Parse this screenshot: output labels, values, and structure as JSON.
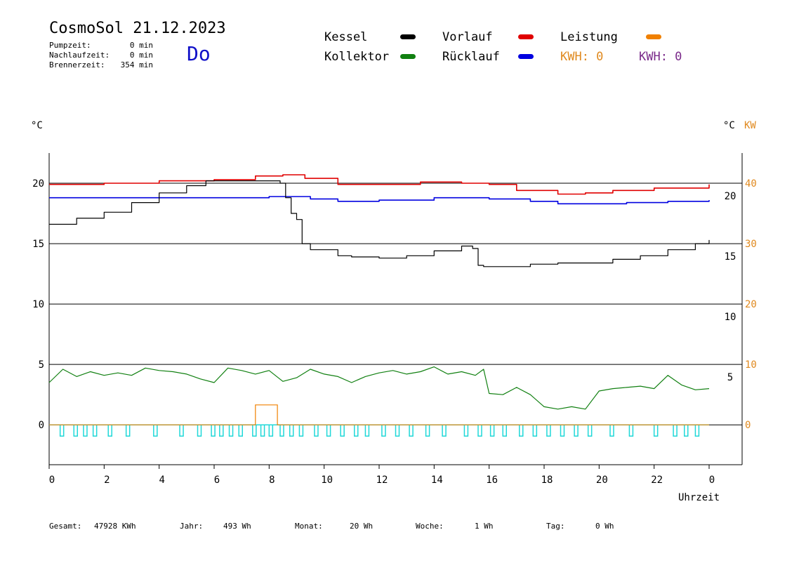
{
  "header": {
    "title": "CosmoSol 21.12.2023",
    "weekday": "Do",
    "stats": [
      {
        "label": "Pumpzeit:",
        "value": "0 min"
      },
      {
        "label": "Nachlaufzeit:",
        "value": "0 min"
      },
      {
        "label": "Brennerzeit:",
        "value": "354 min"
      }
    ]
  },
  "legend": {
    "kessel": {
      "label": "Kessel",
      "color": "#000000"
    },
    "kollektor": {
      "label": "Kollektor",
      "color": "#118011"
    },
    "vorlauf": {
      "label": "Vorlauf",
      "color": "#e00000"
    },
    "ruecklauf": {
      "label": "Rücklauf",
      "color": "#0000e0"
    },
    "leistung": {
      "label": "Leistung",
      "color": "#f08000"
    },
    "kwh_orange": "KWH: 0",
    "kwh_purple": "KWH: 0"
  },
  "axes": {
    "left_unit": "°C",
    "right_unit_c": "°C",
    "right_unit_kw": "KW",
    "xlabel": "Uhrzeit"
  },
  "footer": [
    {
      "label": "Gesamt:",
      "value": "47928 KWh"
    },
    {
      "label": "Jahr:",
      "value": "493 Wh"
    },
    {
      "label": "Monat:",
      "value": "20 Wh"
    },
    {
      "label": "Woche:",
      "value": "1 Wh"
    },
    {
      "label": "Tag:",
      "value": "0 Wh"
    }
  ],
  "chart_data": {
    "type": "line",
    "x_unit": "hour",
    "xlim": [
      0,
      24
    ],
    "x_ticks": [
      "0",
      "2",
      "4",
      "6",
      "8",
      "10",
      "12",
      "14",
      "16",
      "18",
      "20",
      "22",
      "0"
    ],
    "y_left": {
      "range": [
        -3.3,
        22.5
      ],
      "ticks": [
        0,
        5,
        10,
        15,
        20
      ]
    },
    "y_right_c": {
      "ticks": [
        5,
        10,
        15,
        20
      ]
    },
    "y_right_kw": {
      "ticks": [
        0,
        10,
        20,
        30,
        40
      ]
    },
    "grid_lines_y": [
      0,
      5,
      10,
      15,
      20
    ],
    "series": [
      {
        "name": "Vorlauf",
        "color": "#e00000",
        "x": [
          0,
          2,
          4,
          6,
          7.5,
          8.5,
          9.3,
          10.5,
          12,
          13.5,
          15,
          16,
          17,
          18.5,
          19.5,
          20.5,
          22,
          24
        ],
        "y": [
          19.9,
          20.0,
          20.2,
          20.3,
          20.6,
          20.7,
          20.4,
          19.9,
          19.9,
          20.1,
          20.0,
          19.9,
          19.4,
          19.1,
          19.2,
          19.4,
          19.6,
          19.9
        ]
      },
      {
        "name": "Rücklauf",
        "color": "#0000e0",
        "x": [
          0,
          2,
          4,
          6,
          8,
          9.5,
          10.5,
          12,
          14,
          16,
          17.5,
          18.5,
          19.5,
          21,
          22.5,
          24
        ],
        "y": [
          18.8,
          18.8,
          18.8,
          18.8,
          18.9,
          18.7,
          18.5,
          18.6,
          18.8,
          18.7,
          18.5,
          18.3,
          18.3,
          18.4,
          18.5,
          18.6
        ]
      },
      {
        "name": "Kessel",
        "color": "#000000",
        "x": [
          0,
          1,
          2,
          3,
          4,
          5,
          5.7,
          6.5,
          8,
          8.4,
          8.6,
          8.8,
          9.0,
          9.2,
          9.5,
          10,
          10.5,
          11,
          12,
          13,
          14,
          15,
          15.4,
          15.6,
          15.8,
          16.5,
          17.5,
          18.5,
          19.5,
          20.5,
          21.5,
          22.5,
          23.5,
          24
        ],
        "y": [
          16.6,
          17.1,
          17.6,
          18.4,
          19.2,
          19.8,
          20.2,
          20.2,
          20.2,
          20.0,
          18.8,
          17.5,
          17.0,
          15.0,
          14.5,
          14.5,
          14.0,
          13.9,
          13.8,
          14.0,
          14.4,
          14.8,
          14.6,
          13.2,
          13.1,
          13.1,
          13.3,
          13.4,
          13.4,
          13.7,
          14.0,
          14.5,
          15.0,
          15.3
        ]
      },
      {
        "name": "Kollektor",
        "color": "#118011",
        "x": [
          0,
          0.5,
          1,
          1.5,
          2,
          2.5,
          3,
          3.5,
          4,
          4.5,
          5,
          5.5,
          6,
          6.5,
          7,
          7.5,
          8,
          8.5,
          9,
          9.5,
          10,
          10.5,
          11,
          11.5,
          12,
          12.5,
          13,
          13.5,
          14,
          14.5,
          15,
          15.5,
          15.8,
          16,
          16.5,
          17,
          17.5,
          18,
          18.5,
          19,
          19.5,
          20,
          20.5,
          21,
          21.5,
          22,
          22.5,
          23,
          23.5,
          24
        ],
        "y": [
          3.5,
          4.6,
          4.0,
          4.4,
          4.1,
          4.3,
          4.1,
          4.7,
          4.5,
          4.4,
          4.2,
          3.8,
          3.5,
          4.7,
          4.5,
          4.2,
          4.5,
          3.6,
          3.9,
          4.6,
          4.2,
          4.0,
          3.5,
          4.0,
          4.3,
          4.5,
          4.2,
          4.4,
          4.8,
          4.2,
          4.4,
          4.1,
          4.6,
          2.6,
          2.5,
          3.1,
          2.5,
          1.5,
          1.3,
          1.5,
          1.3,
          2.8,
          3.0,
          3.1,
          3.2,
          3.0,
          4.1,
          3.3,
          2.9,
          3.0
        ]
      }
    ],
    "kw_series": {
      "name": "Leistung",
      "color": "#f08000",
      "x": [
        0,
        7.5,
        7.5,
        8.3,
        8.3,
        24
      ],
      "y": [
        0,
        0,
        3.3,
        3.3,
        0,
        0
      ]
    },
    "pump_cycles": {
      "color": "#20d8d8",
      "x": [
        0.4,
        0.9,
        1.25,
        1.6,
        2.15,
        2.8,
        3.8,
        4.75,
        5.4,
        5.9,
        6.2,
        6.55,
        6.9,
        7.4,
        7.7,
        8.0,
        8.4,
        8.75,
        9.1,
        9.65,
        10.1,
        10.6,
        11.1,
        11.5,
        12.1,
        12.6,
        13.1,
        13.7,
        14.3,
        15.1,
        15.6,
        16.05,
        16.5,
        17.1,
        17.6,
        18.1,
        18.6,
        19.1,
        19.6,
        20.4,
        21.1,
        22.0,
        22.7,
        23.1,
        23.5
      ]
    }
  }
}
